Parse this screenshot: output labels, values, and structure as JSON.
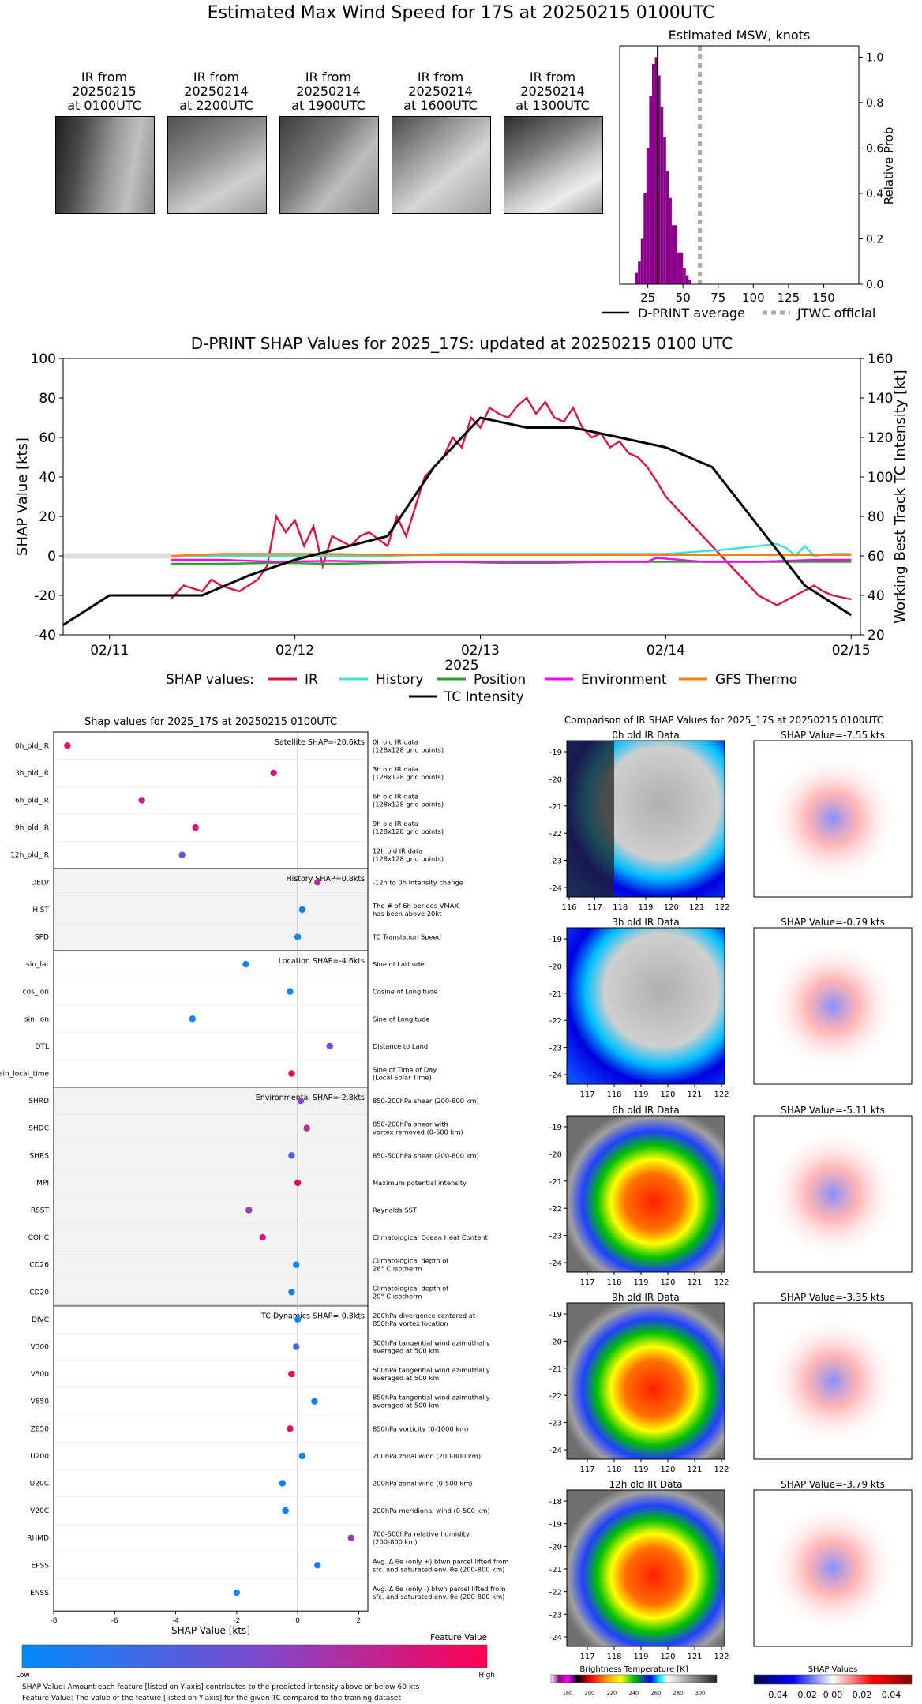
{
  "main_title": "Estimated Max Wind Speed for 17S at 20250215 0100UTC",
  "ir_thumbs": [
    {
      "line1": "IR from",
      "line2": "20250215",
      "line3": "at 0100UTC"
    },
    {
      "line1": "IR from",
      "line2": "20250214",
      "line3": "at 2200UTC"
    },
    {
      "line1": "IR from",
      "line2": "20250214",
      "line3": "at 1900UTC"
    },
    {
      "line1": "IR from",
      "line2": "20250214",
      "line3": "at 1600UTC"
    },
    {
      "line1": "IR from",
      "line2": "20250214",
      "line3": "at 1300UTC"
    }
  ],
  "chart_data": [
    {
      "type": "bar",
      "title": "Estimated MSW, knots",
      "ylabel": "Relative Prob",
      "xlim": [
        5,
        175
      ],
      "ylim": [
        0,
        1.05
      ],
      "xticks": [
        25,
        50,
        75,
        100,
        125,
        150
      ],
      "yticks": [
        0.0,
        0.2,
        0.4,
        0.6,
        0.8,
        1.0
      ],
      "bar_color": "#8b008b",
      "bins": [
        [
          17,
          0.05
        ],
        [
          19,
          0.1
        ],
        [
          21,
          0.2
        ],
        [
          23,
          0.4
        ],
        [
          25,
          0.6
        ],
        [
          27,
          0.83
        ],
        [
          29,
          0.97
        ],
        [
          31,
          1.0
        ],
        [
          33,
          0.92
        ],
        [
          35,
          0.78
        ],
        [
          37,
          0.65
        ],
        [
          39,
          0.5
        ],
        [
          41,
          0.38
        ],
        [
          43,
          0.26
        ],
        [
          45,
          0.26
        ],
        [
          47,
          0.14
        ],
        [
          49,
          0.14
        ],
        [
          51,
          0.07
        ],
        [
          53,
          0.04
        ],
        [
          55,
          0.02
        ]
      ],
      "dprint_average": 32,
      "jtwc_official": 62,
      "legend": [
        "D-PRINT average",
        "JTWC official"
      ]
    },
    {
      "type": "line",
      "title": "D-PRINT SHAP Values for 2025_17S: updated at 20250215 0100 UTC",
      "xlabel": "2025",
      "ylabel": "SHAP Value [kts]",
      "y2label": "Working Best Track TC Intensity [kt]",
      "xlim": [
        10.75,
        15.05
      ],
      "ylim": [
        -40,
        100
      ],
      "y2lim": [
        20,
        160
      ],
      "xticks": [
        11,
        12,
        13,
        14,
        15
      ],
      "xticklabels": [
        "02/11",
        "02/12",
        "02/13",
        "02/14",
        "02/15"
      ],
      "yticks": [
        -40,
        -20,
        0,
        20,
        40,
        60,
        80,
        100
      ],
      "y2ticks": [
        20,
        40,
        60,
        80,
        100,
        120,
        140,
        160
      ],
      "legend_prefix": "SHAP values:",
      "series": [
        {
          "name": "IR",
          "color": "#dc143c",
          "x": [
            11.33,
            11.4,
            11.5,
            11.55,
            11.6,
            11.7,
            11.8,
            11.85,
            11.9,
            11.95,
            12.0,
            12.05,
            12.1,
            12.15,
            12.2,
            12.3,
            12.35,
            12.4,
            12.5,
            12.55,
            12.6,
            12.65,
            12.7,
            12.75,
            12.8,
            12.85,
            12.9,
            12.95,
            13.0,
            13.05,
            13.1,
            13.15,
            13.2,
            13.25,
            13.3,
            13.35,
            13.4,
            13.45,
            13.5,
            13.55,
            13.6,
            13.65,
            13.7,
            13.75,
            13.8,
            13.85,
            13.9,
            13.95,
            14.0,
            14.1,
            14.2,
            14.3,
            14.4,
            14.5,
            14.6,
            14.7,
            14.8,
            14.85,
            14.9,
            15.0
          ],
          "y": [
            -22,
            -15,
            -18,
            -12,
            -15,
            -18,
            -12,
            -5,
            20,
            12,
            18,
            5,
            15,
            -5,
            10,
            5,
            10,
            12,
            5,
            20,
            10,
            25,
            40,
            45,
            50,
            60,
            55,
            70,
            65,
            75,
            72,
            70,
            76,
            80,
            72,
            78,
            70,
            68,
            75,
            65,
            60,
            62,
            55,
            58,
            52,
            50,
            45,
            38,
            30,
            20,
            10,
            0,
            -10,
            -20,
            -25,
            -20,
            -15,
            -18,
            -20,
            -22
          ]
        },
        {
          "name": "History",
          "color": "#40e0d0",
          "x": [
            11.33,
            11.6,
            11.9,
            12.2,
            12.5,
            12.8,
            13.1,
            13.4,
            13.7,
            14.0,
            14.3,
            14.6,
            14.65,
            14.7,
            14.75,
            14.8,
            14.9,
            15.0
          ],
          "y": [
            0,
            0,
            0,
            0,
            0,
            1,
            1,
            1,
            1,
            1,
            3,
            6,
            4,
            0,
            5,
            0,
            1,
            1
          ]
        },
        {
          "name": "Position",
          "color": "#2ca02c",
          "x": [
            11.33,
            11.6,
            11.9,
            12.2,
            12.5,
            12.8,
            13.1,
            13.4,
            13.7,
            14.0,
            14.3,
            14.6,
            14.9,
            15.0
          ],
          "y": [
            -4,
            -4,
            -3.5,
            -4,
            -3.5,
            -3,
            -3.5,
            -3.5,
            -3,
            -3,
            -3,
            -3,
            -3,
            -3
          ]
        },
        {
          "name": "Environment",
          "color": "#ff00ff",
          "x": [
            11.33,
            11.6,
            11.9,
            12.2,
            12.5,
            12.8,
            13.1,
            13.4,
            13.7,
            13.9,
            13.95,
            14.2,
            14.5,
            14.8,
            15.0
          ],
          "y": [
            -2,
            -2,
            -3,
            -2.5,
            -3,
            -3,
            -3,
            -3,
            -3,
            -3,
            -1,
            -3,
            -3,
            -2,
            -2
          ]
        },
        {
          "name": "GFS Thermo",
          "color": "#ff7f0e",
          "x": [
            11.33,
            11.6,
            11.9,
            12.2,
            12.5,
            12.8,
            13.1,
            13.4,
            13.7,
            14.0,
            14.3,
            14.6,
            14.9,
            15.0
          ],
          "y": [
            0,
            1,
            1,
            1,
            0.5,
            0.5,
            0.5,
            0.5,
            0.5,
            0.5,
            0.5,
            0.5,
            0.5,
            0.5
          ]
        },
        {
          "name": "TC Intensity",
          "color": "#000000",
          "axis": "y2",
          "x": [
            10.75,
            11.0,
            11.5,
            11.75,
            12.0,
            12.5,
            12.75,
            13.0,
            13.25,
            13.5,
            13.75,
            14.0,
            14.25,
            14.5,
            14.75,
            15.0
          ],
          "y": [
            25,
            40,
            40,
            50,
            58,
            70,
            105,
            130,
            125,
            125,
            120,
            115,
            105,
            75,
            45,
            30
          ]
        }
      ]
    },
    {
      "type": "scatter",
      "title": "Shap values for 2025_17S at 20250215 0100UTC",
      "xlabel": "SHAP Value [kts]",
      "xlim": [
        -8,
        2.3
      ],
      "xticks": [
        -8,
        -6,
        -4,
        -2,
        0,
        2
      ],
      "colorbar_label": "Feature Value",
      "colorbar_low": "Low",
      "colorbar_high": "High",
      "groups": [
        {
          "label": "Satellite SHAP=-20.6kts",
          "shaded": false
        },
        {
          "label": "History SHAP=0.8kts",
          "shaded": true
        },
        {
          "label": "Location SHAP=-4.6kts",
          "shaded": false
        },
        {
          "label": "Environmental SHAP=-2.8kts",
          "shaded": true
        },
        {
          "label": "TC Dynamics SHAP=-0.3kts",
          "shaded": false
        }
      ],
      "features": [
        {
          "name": "0h_old_IR",
          "group": 0,
          "value": -7.55,
          "fv": 0.9,
          "desc1": "0h old IR data",
          "desc2": "(128x128 grid points)"
        },
        {
          "name": "3h_old_IR",
          "group": 0,
          "value": -0.79,
          "fv": 0.85,
          "desc1": "3h old IR data",
          "desc2": "(128x128 grid points)"
        },
        {
          "name": "6h_old_IR",
          "group": 0,
          "value": -5.11,
          "fv": 0.8,
          "desc1": "6h old IR data",
          "desc2": "(128x128 grid points)"
        },
        {
          "name": "9h_old_IR",
          "group": 0,
          "value": -3.35,
          "fv": 0.85,
          "desc1": "9h old IR data",
          "desc2": "(128x128 grid points)"
        },
        {
          "name": "12h_old_IR",
          "group": 0,
          "value": -3.79,
          "fv": 0.4,
          "desc1": "12h old IR data",
          "desc2": "(128x128 grid points)"
        },
        {
          "name": "DELV",
          "group": 1,
          "value": 0.65,
          "fv": 0.7,
          "desc1": "-12h to 0h Intensity change",
          "desc2": ""
        },
        {
          "name": "HIST",
          "group": 1,
          "value": 0.15,
          "fv": 0.05,
          "desc1": "The # of 6h periods VMAX",
          "desc2": "has been above 20kt"
        },
        {
          "name": "SPD",
          "group": 1,
          "value": 0.0,
          "fv": 0.05,
          "desc1": "TC Translation Speed",
          "desc2": ""
        },
        {
          "name": "sin_lat",
          "group": 2,
          "value": -1.7,
          "fv": 0.05,
          "desc1": "Sine of Latitude",
          "desc2": ""
        },
        {
          "name": "cos_lon",
          "group": 2,
          "value": -0.25,
          "fv": 0.05,
          "desc1": "Cosine of Longitude",
          "desc2": ""
        },
        {
          "name": "sin_lon",
          "group": 2,
          "value": -3.45,
          "fv": 0.05,
          "desc1": "Sine of Longitude",
          "desc2": ""
        },
        {
          "name": "DTL",
          "group": 2,
          "value": 1.05,
          "fv": 0.5,
          "desc1": "Distance to Land",
          "desc2": ""
        },
        {
          "name": "sin_local_time",
          "group": 2,
          "value": -0.2,
          "fv": 0.95,
          "desc1": "Sine of Time of Day",
          "desc2": "(Local Solar Time)"
        },
        {
          "name": "SHRD",
          "group": 3,
          "value": 0.1,
          "fv": 0.55,
          "desc1": "850-200hPa shear (200-800 km)",
          "desc2": ""
        },
        {
          "name": "SHDC",
          "group": 3,
          "value": 0.3,
          "fv": 0.75,
          "desc1": "850-200hPa shear with",
          "desc2": "vortex removed (0-500 km)"
        },
        {
          "name": "SHRS",
          "group": 3,
          "value": -0.2,
          "fv": 0.35,
          "desc1": "850-500hPa shear (200-800 km)",
          "desc2": ""
        },
        {
          "name": "MPI",
          "group": 3,
          "value": 0.0,
          "fv": 0.95,
          "desc1": "Maximum potential intensity",
          "desc2": ""
        },
        {
          "name": "RSST",
          "group": 3,
          "value": -1.6,
          "fv": 0.6,
          "desc1": "Reynolds SST",
          "desc2": ""
        },
        {
          "name": "COHC",
          "group": 3,
          "value": -1.15,
          "fv": 0.85,
          "desc1": "Climatological Ocean Heat Content",
          "desc2": ""
        },
        {
          "name": "CD26",
          "group": 3,
          "value": -0.05,
          "fv": 0.05,
          "desc1": "Climatological depth of",
          "desc2": "26° C isotherm"
        },
        {
          "name": "CD20",
          "group": 3,
          "value": -0.2,
          "fv": 0.1,
          "desc1": "Climatological depth of",
          "desc2": "20° C isotherm"
        },
        {
          "name": "DIVC",
          "group": 4,
          "value": 0.0,
          "fv": 0.05,
          "desc1": "200hPa divergence centered at",
          "desc2": "850hPa vortex location"
        },
        {
          "name": "V300",
          "group": 4,
          "value": -0.05,
          "fv": 0.3,
          "desc1": "300hPa tangential wind azimuthally",
          "desc2": "averaged at 500 km"
        },
        {
          "name": "V500",
          "group": 4,
          "value": -0.2,
          "fv": 0.95,
          "desc1": "500hPa tangential wind azimuthally",
          "desc2": "averaged at 500 km"
        },
        {
          "name": "V850",
          "group": 4,
          "value": 0.55,
          "fv": 0.05,
          "desc1": "850hPa tangential wind azimuthally",
          "desc2": "averaged at 500 km"
        },
        {
          "name": "Z850",
          "group": 4,
          "value": -0.25,
          "fv": 0.95,
          "desc1": "850hPa vorticity (0-1000 km)",
          "desc2": ""
        },
        {
          "name": "U200",
          "group": 4,
          "value": 0.15,
          "fv": 0.05,
          "desc1": "200hPa zonal wind (200-800 km)",
          "desc2": ""
        },
        {
          "name": "U20C",
          "group": 4,
          "value": -0.5,
          "fv": 0.05,
          "desc1": "200hPa zonal wind (0-500 km)",
          "desc2": ""
        },
        {
          "name": "V20C",
          "group": 4,
          "value": -0.4,
          "fv": 0.05,
          "desc1": "200hPa meridional wind (0-500 km)",
          "desc2": ""
        },
        {
          "name": "RHMD",
          "group": 4,
          "value": 1.75,
          "fv": 0.6,
          "desc1": "700-500hPa relative humidity",
          "desc2": "(200-800 km)"
        },
        {
          "name": "EPSS",
          "group": 4,
          "value": 0.65,
          "fv": 0.05,
          "desc1": "Avg. Δ θe (only +) btwn parcel lifted from",
          "desc2": "sfc. and saturated env. θe (200-800 km)"
        },
        {
          "name": "ENSS",
          "group": 4,
          "value": -2.0,
          "fv": 0.05,
          "desc1": "Avg. Δ θe (only -) btwn parcel lifted from",
          "desc2": "sfc. and saturated env. θe (200-800 km)"
        }
      ]
    }
  ],
  "footnote1": "SHAP Value: Amount each feature [listed on Y-axis] contributes to the predicted intensity above or below 60 kts",
  "footnote2": "Feature Value: The value of the feature [listed on Y-axis] for the given TC compared to the training dataset",
  "compare": {
    "title": "Comparison of IR SHAP Values for 2025_17S at 20250215 0100UTC",
    "rows": [
      {
        "ir_title": "0h old IR Data",
        "shap_title": "SHAP Value=-7.55 kts",
        "yticks": [
          -19,
          -20,
          -21,
          -22,
          -23,
          -24
        ],
        "xticks": [
          116,
          117,
          118,
          119,
          120,
          121,
          122
        ]
      },
      {
        "ir_title": "3h old IR Data",
        "shap_title": "SHAP Value=-0.79 kts",
        "yticks": [
          -19,
          -20,
          -21,
          -22,
          -23,
          -24
        ],
        "xticks": [
          117,
          118,
          119,
          120,
          121,
          122
        ]
      },
      {
        "ir_title": "6h old IR Data",
        "shap_title": "SHAP Value=-5.11 kts",
        "yticks": [
          -19,
          -20,
          -21,
          -22,
          -23,
          -24
        ],
        "xticks": [
          117,
          118,
          119,
          120,
          121,
          122
        ]
      },
      {
        "ir_title": "9h old IR Data",
        "shap_title": "SHAP Value=-3.35 kts",
        "yticks": [
          -19,
          -20,
          -21,
          -22,
          -23,
          -24
        ],
        "xticks": [
          117,
          118,
          119,
          120,
          121,
          122
        ]
      },
      {
        "ir_title": "12h old IR Data",
        "shap_title": "SHAP Value=-3.79 kts",
        "yticks": [
          -18,
          -19,
          -20,
          -21,
          -22,
          -23,
          -24
        ],
        "xticks": [
          117,
          118,
          119,
          120,
          121,
          122
        ]
      }
    ],
    "bt_label": "Brightness Temperature [K]",
    "bt_ticks": [
      "180",
      "200",
      "220",
      "240",
      "260",
      "280",
      "300"
    ],
    "shap_cb_label": "SHAP Values",
    "shap_cb_ticks": [
      "−0.04",
      "−0.02",
      "0.00",
      "0.02",
      "0.04"
    ]
  }
}
